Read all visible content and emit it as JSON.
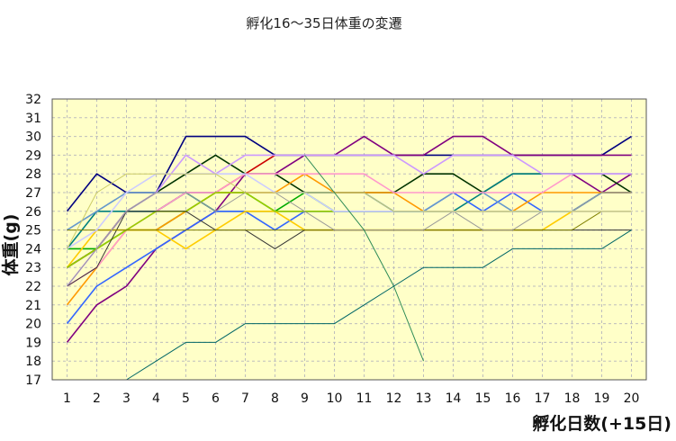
{
  "chart_data": {
    "type": "line",
    "title": "孵化16〜35日体重の変遷",
    "xlabel": "孵化日数(+15日)",
    "ylabel": "体重(g)",
    "x": [
      1,
      2,
      3,
      4,
      5,
      6,
      7,
      8,
      9,
      10,
      11,
      12,
      13,
      14,
      15,
      16,
      17,
      18,
      19,
      20
    ],
    "xlim": [
      0.5,
      20.5
    ],
    "ylim": [
      17,
      32
    ],
    "xticks": [
      "1",
      "2",
      "3",
      "4",
      "5",
      "6",
      "7",
      "8",
      "9",
      "10",
      "11",
      "12",
      "13",
      "14",
      "15",
      "16",
      "17",
      "18",
      "19",
      "20"
    ],
    "yticks": [
      "17",
      "18",
      "19",
      "20",
      "21",
      "22",
      "23",
      "24",
      "25",
      "26",
      "27",
      "28",
      "29",
      "30",
      "31",
      "32"
    ],
    "grid": true,
    "background": "#ffffc8",
    "series": [
      {
        "color": "#000080",
        "width": "normal",
        "values": [
          26,
          28,
          27,
          27,
          30,
          30,
          30,
          29,
          29,
          29,
          29,
          29,
          29,
          29,
          29,
          29,
          29,
          29,
          29,
          30
        ]
      },
      {
        "color": "#800080",
        "width": "normal",
        "values": [
          19,
          21,
          22,
          24,
          25,
          26,
          28,
          28,
          29,
          29,
          30,
          29,
          29,
          30,
          30,
          29,
          29,
          29,
          29,
          29
        ]
      },
      {
        "color": "#800080",
        "width": "normal",
        "values": [
          null,
          null,
          null,
          null,
          null,
          null,
          null,
          null,
          null,
          null,
          null,
          null,
          null,
          null,
          null,
          null,
          null,
          28,
          27,
          28
        ]
      },
      {
        "color": "#cc0000",
        "width": "normal",
        "values": [
          23,
          24,
          26,
          26,
          27,
          27,
          28,
          29,
          null,
          null,
          null,
          null,
          null,
          null,
          null,
          null,
          null,
          null,
          null,
          null
        ]
      },
      {
        "color": "#003300",
        "width": "normal",
        "values": [
          23,
          24,
          26,
          27,
          28,
          29,
          28,
          28,
          27,
          27,
          27,
          27,
          28,
          28,
          27,
          28,
          28,
          28,
          28,
          27
        ]
      },
      {
        "color": "#00aa00",
        "width": "normal",
        "values": [
          24,
          24,
          25,
          25,
          26,
          27,
          27,
          26,
          27,
          26,
          26,
          26,
          26,
          26,
          26,
          26,
          26,
          26,
          27,
          27
        ]
      },
      {
        "color": "#008080",
        "width": "normal",
        "values": [
          24,
          26,
          26,
          26,
          27,
          26,
          26,
          26,
          26,
          26,
          26,
          26,
          26,
          26,
          27,
          28,
          28,
          28,
          28,
          28
        ]
      },
      {
        "color": "#3366ff",
        "width": "normal",
        "values": [
          20,
          22,
          23,
          24,
          25,
          26,
          26,
          25,
          26,
          26,
          26,
          26,
          26,
          27,
          26,
          27,
          26,
          26,
          27,
          27
        ]
      },
      {
        "color": "#6699cc",
        "width": "normal",
        "values": [
          25,
          26,
          27,
          27,
          27,
          27,
          27,
          27,
          27,
          27,
          27,
          26,
          26,
          27,
          27,
          26,
          26,
          26,
          27,
          27
        ]
      },
      {
        "color": "#ff9900",
        "width": "normal",
        "values": [
          21,
          23,
          25,
          25,
          26,
          27,
          27,
          27,
          28,
          27,
          27,
          27,
          26,
          26,
          26,
          26,
          27,
          27,
          27,
          27
        ]
      },
      {
        "color": "#ffcc00",
        "width": "normal",
        "values": [
          23,
          25,
          25,
          25,
          24,
          25,
          26,
          26,
          25,
          25,
          25,
          25,
          25,
          25,
          25,
          25,
          25,
          26,
          26,
          26
        ]
      },
      {
        "color": "#ff99cc",
        "width": "normal",
        "values": [
          22,
          23,
          25,
          26,
          27,
          27,
          28,
          28,
          28,
          28,
          28,
          27,
          27,
          27,
          27,
          27,
          27,
          28,
          28,
          28
        ]
      },
      {
        "color": "#cc99ff",
        "width": "normal",
        "values": [
          22,
          24,
          26,
          27,
          29,
          28,
          29,
          29,
          29,
          29,
          29,
          29,
          28,
          29,
          29,
          29,
          28,
          28,
          28,
          28
        ]
      },
      {
        "color": "#99cc00",
        "width": "normal",
        "values": [
          23,
          24,
          25,
          26,
          26,
          27,
          27,
          26,
          26,
          26,
          26,
          26,
          26,
          26,
          26,
          26,
          26,
          26,
          26,
          26
        ]
      },
      {
        "color": "#333333",
        "width": "thin",
        "values": [
          22,
          23,
          26,
          26,
          26,
          25,
          25,
          24,
          25,
          25,
          25,
          25,
          25,
          25,
          25,
          25,
          25,
          25,
          25,
          25
        ]
      },
      {
        "color": "#808000",
        "width": "thin",
        "values": [
          25,
          25,
          25,
          25,
          25,
          25,
          25,
          25,
          25,
          25,
          25,
          25,
          25,
          25,
          25,
          25,
          25,
          25,
          26,
          26
        ]
      },
      {
        "color": "#999999",
        "width": "thin",
        "values": [
          22,
          24,
          26,
          27,
          27,
          26,
          27,
          27,
          26,
          25,
          25,
          25,
          25,
          26,
          25,
          25,
          26,
          26,
          27,
          27
        ]
      },
      {
        "color": "#ccccff",
        "width": "normal",
        "values": [
          24,
          25,
          27,
          28,
          28,
          28,
          28,
          27,
          27,
          26,
          26,
          26,
          26,
          26,
          26,
          26,
          26,
          26,
          26,
          26
        ]
      },
      {
        "color": "#cccc66",
        "width": "thin",
        "values": [
          24,
          27,
          28,
          28,
          28,
          28,
          27,
          27,
          27,
          27,
          27,
          26,
          26,
          26,
          26,
          26,
          26,
          26,
          26,
          26
        ]
      },
      {
        "color": "#2e8b57",
        "width": "thin",
        "values": [
          null,
          null,
          null,
          null,
          null,
          null,
          null,
          null,
          29,
          27,
          25,
          22,
          18,
          null,
          null,
          null,
          null,
          null,
          null,
          null
        ]
      },
      {
        "color": "#006666",
        "width": "thin",
        "values": [
          null,
          null,
          17,
          18,
          19,
          19,
          20,
          20,
          20,
          20,
          21,
          22,
          23,
          23,
          23,
          24,
          24,
          24,
          24,
          25
        ]
      }
    ]
  }
}
